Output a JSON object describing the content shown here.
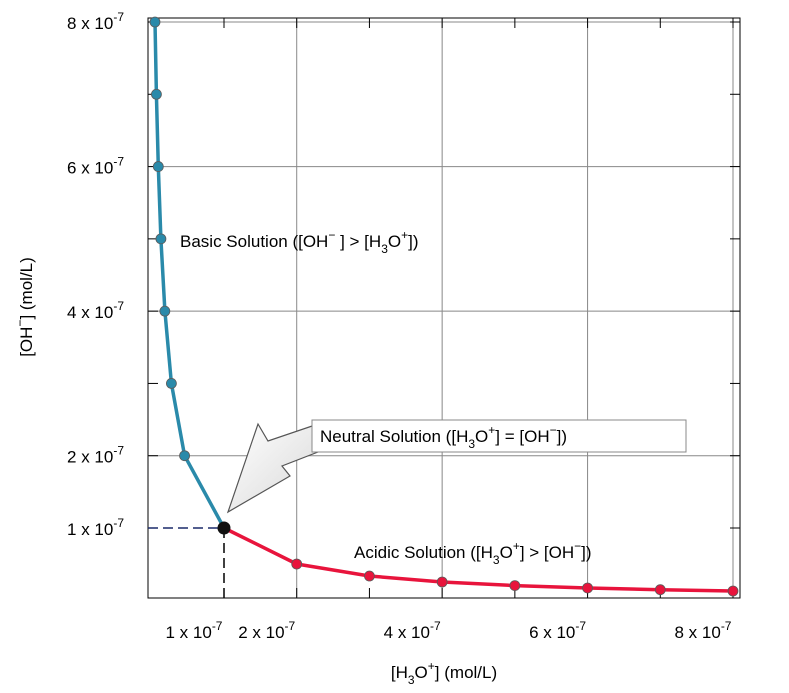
{
  "chart_data": {
    "type": "scatter",
    "xlabel": {
      "pre": "[H",
      "sub": "3",
      "mid": "O",
      "sup": "+",
      "post": "] (mol/L)"
    },
    "ylabel": {
      "pre": "[OH",
      "sup": "−",
      "post": "] (mol/L)"
    },
    "xlim": [
      5e-08,
      8e-07
    ],
    "ylim": [
      5e-08,
      8e-07
    ],
    "x_ticks": [
      {
        "value": 1e-07,
        "mant": "1",
        "base": " x 10",
        "exp": "-7"
      },
      {
        "value": 2e-07,
        "mant": "2",
        "base": " x 10",
        "exp": "-7"
      },
      {
        "value": 4e-07,
        "mant": "4",
        "base": " x 10",
        "exp": "-7"
      },
      {
        "value": 6e-07,
        "mant": "6",
        "base": " x 10",
        "exp": "-7"
      },
      {
        "value": 8e-07,
        "mant": "8",
        "base": " x 10",
        "exp": "-7"
      }
    ],
    "y_ticks": [
      {
        "value": 1e-07,
        "mant": "1",
        "base": " x 10",
        "exp": "-7"
      },
      {
        "value": 2e-07,
        "mant": "2",
        "base": " x 10",
        "exp": "-7"
      },
      {
        "value": 4e-07,
        "mant": "4",
        "base": " x 10",
        "exp": "-7"
      },
      {
        "value": 6e-07,
        "mant": "6",
        "base": " x 10",
        "exp": "-7"
      },
      {
        "value": 8e-07,
        "mant": "8",
        "base": " x 10",
        "exp": "-7"
      }
    ],
    "grid": true,
    "series": [
      {
        "color": "#2a8aaa",
        "x": [
          1.25e-08,
          1.43e-08,
          1.67e-08,
          2e-08,
          2.5e-08,
          3.33e-08,
          5e-08,
          1e-07
        ],
        "y": [
          8e-07,
          7e-07,
          6e-07,
          5e-07,
          4e-07,
          3e-07,
          2e-07,
          1e-07
        ]
      },
      {
        "color": "#e8143c",
        "x": [
          1e-07,
          2e-07,
          3e-07,
          4e-07,
          5e-07,
          6e-07,
          7e-07,
          8e-07
        ],
        "y": [
          1e-07,
          5e-08,
          3.33e-08,
          2.5e-08,
          2e-08,
          1.67e-08,
          1.43e-08,
          1.25e-08
        ]
      }
    ],
    "neutral_point": {
      "x": 1e-07,
      "y": 1e-07
    },
    "annotations": {
      "basic": {
        "color": "#1a1acc",
        "t1": "Basic Solution ([OH",
        "s1": "−",
        "t2": " ] > [H",
        "b1": "3",
        "t3": "O",
        "s2": "+",
        "t4": "])"
      },
      "acidic": {
        "color": "#e8143c",
        "t1": "Acidic Solution ([H",
        "b1": "3",
        "t2": "O",
        "s1": "+",
        "t3": "] > [OH",
        "s2": "−",
        "t4": "])"
      },
      "neutral": {
        "color": "#000000",
        "t1": "Neutral Solution ([H",
        "b1": "3",
        "t2": "O",
        "s1": "+",
        "t3": "] = [OH",
        "s2": "−",
        "t4": "])"
      }
    }
  }
}
